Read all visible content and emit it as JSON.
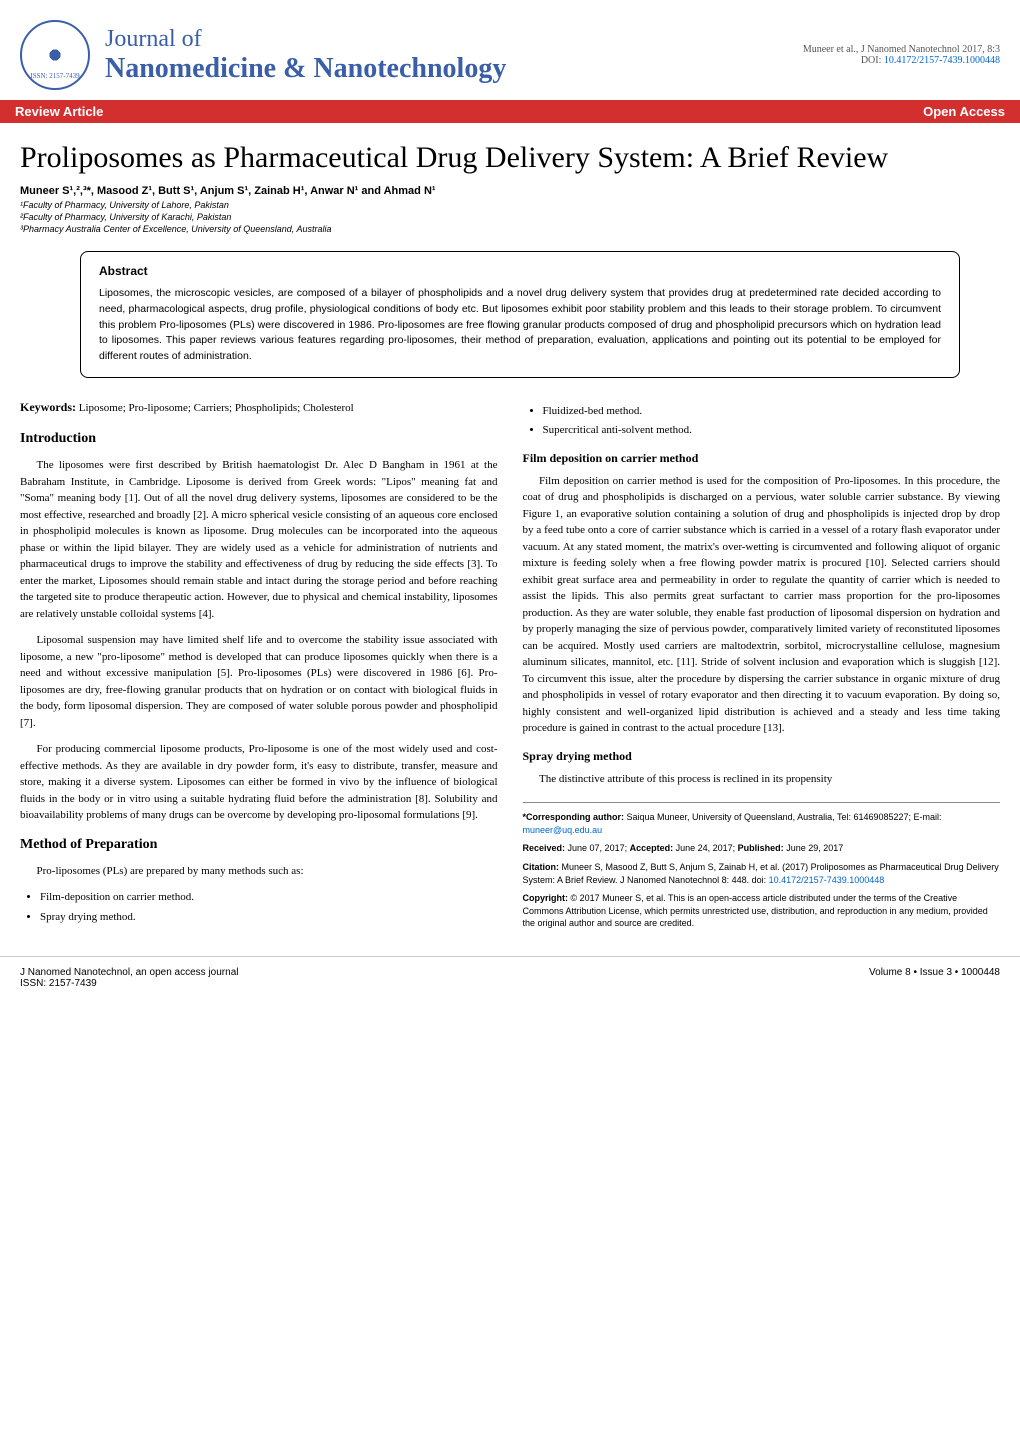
{
  "header": {
    "journal_name_1": "Journal of",
    "journal_name_2": "Nanomedicine & Nanotechnology",
    "issn_label": "ISSN: 2157-7439",
    "citation_short": "Muneer et al., J Nanomed Nanotechnol 2017, 8:3",
    "doi_label": "DOI: ",
    "doi": "10.4172/2157-7439.1000448"
  },
  "banner": {
    "left": "Review Article",
    "right": "Open Access"
  },
  "title": "Proliposomes as Pharmaceutical Drug Delivery System: A Brief Review",
  "authors": "Muneer S¹,²,³*, Masood Z¹, Butt S¹, Anjum S¹, Zainab H¹, Anwar N¹ and Ahmad N¹",
  "affiliations": [
    "¹Faculty of Pharmacy, University of Lahore, Pakistan",
    "²Faculty of Pharmacy, University of Karachi, Pakistan",
    "³Pharmacy Australia Center of Excellence, University of Queensland, Australia"
  ],
  "abstract": {
    "title": "Abstract",
    "text": "Liposomes, the microscopic vesicles, are composed of a bilayer of phospholipids and a novel drug delivery system that provides drug at predetermined rate decided according to need, pharmacological aspects, drug profile, physiological conditions of body etc. But liposomes exhibit poor stability problem and this leads to their storage problem. To circumvent this problem Pro-liposomes (PLs) were discovered in 1986. Pro-liposomes are free flowing granular products composed of drug and phospholipid precursors which on hydration lead to liposomes. This paper reviews various features regarding pro-liposomes, their method of preparation, evaluation, applications and pointing out its potential to be employed for different routes of administration."
  },
  "keywords": {
    "label": "Keywords:",
    "text": " Liposome; Pro-liposome; Carriers; Phospholipids; Cholesterol"
  },
  "sections": {
    "introduction": {
      "title": "Introduction",
      "paras": [
        "The liposomes were first described by British haematologist Dr. Alec D Bangham in 1961 at the Babraham Institute, in Cambridge. Liposome is derived from Greek words: \"Lipos\" meaning fat and \"Soma\" meaning body [1]. Out of all the novel drug delivery systems, liposomes are considered to be the most effective, researched and broadly [2]. A micro spherical vesicle consisting of an aqueous core enclosed in phospholipid molecules is known as liposome. Drug molecules can be incorporated into the aqueous phase or within the lipid bilayer. They are widely used as a vehicle for administration of nutrients and pharmaceutical drugs to improve the stability and effectiveness of drug by reducing the side effects [3]. To enter the market, Liposomes should remain stable and intact during the storage period and before reaching the targeted site to produce therapeutic action. However, due to physical and chemical instability, liposomes are relatively unstable colloidal systems [4].",
        "Liposomal suspension may have limited shelf life and to overcome the stability issue associated with liposome, a new \"pro-liposome\" method is developed that can produce liposomes quickly when there is a need and without excessive manipulation [5]. Pro-liposomes (PLs) were discovered in 1986 [6]. Pro-liposomes are dry, free-flowing granular products that on hydration or on contact with biological fluids in the body, form liposomal dispersion. They are composed of water soluble porous powder and phospholipid [7].",
        "For producing commercial liposome products, Pro-liposome is one of the most widely used and cost-effective methods. As they are available in dry powder form, it's easy to distribute, transfer, measure and store, making it a diverse system. Liposomes can either be formed in vivo by the influence of biological fluids in the body or in vitro using a suitable hydrating fluid before the administration [8]. Solubility and bioavailability problems of many drugs can be overcome by developing pro-liposomal formulations [9]."
      ]
    },
    "method": {
      "title": "Method of Preparation",
      "intro": "Pro-liposomes (PLs) are prepared by many methods such as:",
      "bullets_left": [
        "Film-deposition on carrier method.",
        "Spray drying method."
      ],
      "bullets_right": [
        "Fluidized-bed method.",
        "Supercritical anti-solvent method."
      ]
    },
    "film_deposition": {
      "title": "Film deposition on carrier method",
      "para": "Film deposition on carrier method is used for the composition of Pro-liposomes. In this procedure, the coat of drug and phospholipids is discharged on a pervious, water soluble carrier substance. By viewing Figure 1, an evaporative solution containing a solution of drug and phospholipids is injected drop by drop by a feed tube onto a core of carrier substance which is carried in a vessel of a rotary flash evaporator under vacuum. At any stated moment, the matrix's over-wetting is circumvented and following aliquot of organic mixture is feeding solely when a free flowing powder matrix is procured [10]. Selected carriers should exhibit great surface area and permeability in order to regulate the quantity of carrier which is needed to assist the lipids. This also permits great surfactant to carrier mass proportion for the pro-liposomes production. As they are water soluble, they enable fast production of liposomal dispersion on hydration and by properly managing the size of pervious powder, comparatively limited variety of reconstituted liposomes can be acquired. Mostly used carriers are maltodextrin, sorbitol, microcrystalline cellulose, magnesium aluminum silicates, mannitol, etc. [11]. Stride of solvent inclusion and evaporation which is sluggish [12]. To circumvent this issue, alter the procedure by dispersing the carrier substance in organic mixture of drug and phospholipids in vessel of rotary evaporator and then directing it to vacuum evaporation. By doing so, highly consistent and well-organized lipid distribution is achieved and a steady and less time taking procedure is gained in contrast to the actual procedure [13]."
    },
    "spray_drying": {
      "title": "Spray drying method",
      "para": "The distinctive attribute of this process is reclined in its propensity"
    }
  },
  "corresponding": {
    "label": "*Corresponding author: ",
    "text": "Saiqua Muneer, University of Queensland, Australia, Tel: 61469085227; E-mail: ",
    "email": "muneer@uq.edu.au",
    "received_label": "Received: ",
    "received": "June 07, 2017; ",
    "accepted_label": "Accepted: ",
    "accepted": "June 24, 2017; ",
    "published_label": "Published: ",
    "published": "June 29, 2017",
    "citation_label": "Citation: ",
    "citation": "Muneer S, Masood Z, Butt S, Anjum S, Zainab H, et al. (2017) Proliposomes as Pharmaceutical Drug Delivery System: A Brief Review. J Nanomed Nanotechnol 8: 448. doi: ",
    "citation_doi": "10.4172/2157-7439.1000448",
    "copyright_label": "Copyright: ",
    "copyright": "© 2017 Muneer S, et al. This is an open-access article distributed under the terms of the Creative Commons Attribution License, which permits unrestricted use, distribution, and reproduction in any medium, provided the original author and source are credited."
  },
  "footer": {
    "left_1": "J Nanomed Nanotechnol, an open access journal",
    "left_2": "ISSN: 2157-7439",
    "right": "Volume 8 • Issue 3 • 1000448"
  }
}
